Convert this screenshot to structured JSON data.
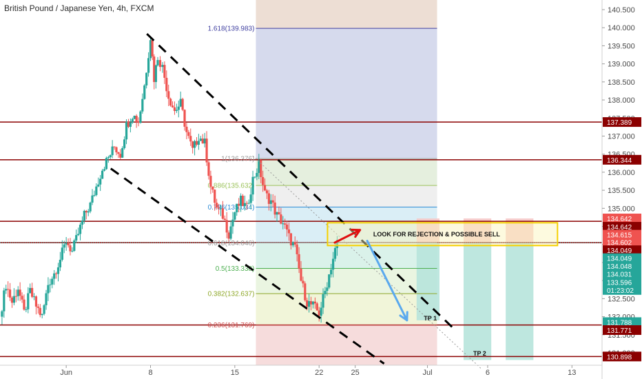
{
  "chart_data": {
    "type": "candlestick",
    "title": "British Pound / Japanese Yen, 4h, FXCM",
    "colors": {
      "up": "#26a69a",
      "down": "#ef5350",
      "level_line": "#8b0000",
      "top_fib": "#3f3fa0",
      "channel": "#000000",
      "arrow_red": "#e01010",
      "arrow_blue": "#5aa9ee",
      "zone_border": "#f5d000",
      "current_line": "#26a69a"
    },
    "y_axis": {
      "min": 130.5,
      "max": 140.85,
      "ticks": [
        "140.500",
        "140.000",
        "139.500",
        "139.000",
        "138.500",
        "138.000",
        "137.500",
        "137.000",
        "136.500",
        "136.000",
        "135.500",
        "135.000",
        "134.500",
        "134.000",
        "133.500",
        "133.000",
        "132.500",
        "132.000",
        "131.500",
        "131.000"
      ]
    },
    "x_axis": {
      "labels": [
        "Jun",
        "8",
        "15",
        "22",
        "25",
        "Jul",
        "6",
        "13"
      ],
      "label_days": [
        1,
        8,
        15,
        22,
        25,
        31,
        36,
        43
      ],
      "start_day": -4.5,
      "end_day": 45.5
    },
    "price_tags": [
      {
        "label": "137.389",
        "value": 137.389,
        "color": "#8b0000"
      },
      {
        "label": "136.344",
        "value": 136.344,
        "color": "#8b0000"
      },
      {
        "label": "134.642",
        "value": 134.72,
        "color": "#ef5350"
      },
      {
        "label": "134.642",
        "value": 134.49,
        "color": "#8b0000"
      },
      {
        "label": "134.615",
        "value": 134.27,
        "color": "#ef5350"
      },
      {
        "label": "134.602",
        "value": 134.06,
        "color": "#ef5350"
      },
      {
        "label": "134.049",
        "value": 133.84,
        "color": "#8b0000"
      },
      {
        "label": "134.049",
        "value": 133.62,
        "color": "#26a69a"
      },
      {
        "label": "134.048",
        "value": 133.4,
        "color": "#26a69a"
      },
      {
        "label": "134.031",
        "value": 133.18,
        "color": "#26a69a"
      },
      {
        "label": "133.596",
        "value": 132.96,
        "color": "#26a69a"
      },
      {
        "label": "01:23:02",
        "value": 132.74,
        "color": "#26a69a"
      },
      {
        "label": "131.788",
        "value": 131.85,
        "color": "#26a69a"
      },
      {
        "label": "131.771",
        "value": 131.63,
        "color": "#8b0000"
      },
      {
        "label": "130.898",
        "value": 130.898,
        "color": "#8b0000"
      }
    ],
    "horizontal_levels": [
      137.389,
      136.344,
      134.642,
      134.05,
      131.771,
      130.898
    ],
    "current_price": 134.049,
    "fib_levels": [
      {
        "label": "1.618(139.983)",
        "value": 139.983,
        "color": "#3f3fa0"
      },
      {
        "label": "1(136.376)",
        "value": 136.376,
        "color": "#9a9a9a"
      },
      {
        "label": "0.886(135.632)",
        "value": 135.632,
        "color": "#9bc25a"
      },
      {
        "label": "0.786(135.034)",
        "value": 135.034,
        "color": "#2b8ad4"
      },
      {
        "label": "0.618(134.046)",
        "value": 134.046,
        "color": "#9a9a9a"
      },
      {
        "label": "0.5(133.338)",
        "value": 133.338,
        "color": "#4caf50"
      },
      {
        "label": "0.382(132.637)",
        "value": 132.637,
        "color": "#8fa82a"
      },
      {
        "label": "0.236(131.769)",
        "value": 131.769,
        "color": "#d04a4a"
      }
    ],
    "fib_bands": [
      {
        "from": 140.85,
        "to": 139.983,
        "color": "#ead8cc"
      },
      {
        "from": 139.983,
        "to": 136.376,
        "color": "#cfd4ea"
      },
      {
        "from": 136.376,
        "to": 135.632,
        "color": "#e0ecd8"
      },
      {
        "from": 135.632,
        "to": 135.034,
        "color": "#ececec"
      },
      {
        "from": 135.034,
        "to": 134.046,
        "color": "#d4ebf5"
      },
      {
        "from": 134.046,
        "to": 133.338,
        "color": "#d4f0e6"
      },
      {
        "from": 133.338,
        "to": 132.637,
        "color": "#e6f3dc"
      },
      {
        "from": 132.637,
        "to": 131.769,
        "color": "#eef3d2"
      },
      {
        "from": 131.769,
        "to": 130.5,
        "color": "#f4d6d6"
      }
    ],
    "fib_x_range": [
      16.75,
      31.8
    ],
    "trade_boxes": [
      {
        "x0": 30.1,
        "x1": 32.0,
        "tp": 131.9,
        "sl": 134.72
      },
      {
        "x0": 34.0,
        "x1": 36.3,
        "tp": 130.8,
        "sl": 134.72
      },
      {
        "x0": 37.5,
        "x1": 39.8,
        "tp": 130.8,
        "sl": 134.72
      }
    ],
    "channel_lines": [
      {
        "from": [
          7.7,
          139.83
        ],
        "to": [
          33.4,
          131.6
        ]
      },
      {
        "from": [
          4.7,
          136.1
        ],
        "to": [
          27.4,
          130.7
        ]
      }
    ],
    "trend_line": {
      "from": [
        16.5,
        136.45
      ],
      "to": [
        35.5,
        130.55
      ]
    },
    "red_arrow": {
      "from": [
        23.3,
        134.05
      ],
      "to": [
        25.4,
        134.4
      ]
    },
    "blue_arrow": {
      "from": [
        26.0,
        134.1
      ],
      "to": [
        29.3,
        131.9
      ]
    },
    "zone": {
      "x0": 22.7,
      "x1": 41.8,
      "y_top": 134.6,
      "y_bottom": 133.97
    },
    "annotations": [
      {
        "text": "LOOK FOR REJECTION & POSSIBLE SELL",
        "day": 26.5,
        "value": 134.28
      },
      {
        "text": "TP 1",
        "day": 30.7,
        "value": 131.95
      },
      {
        "text": "TP 2",
        "day": 34.8,
        "value": 130.98
      }
    ],
    "candles_path": [
      [
        -4.5,
        132.0
      ],
      [
        -4.0,
        132.9
      ],
      [
        -3.5,
        132.4
      ],
      [
        -3.0,
        132.8
      ],
      [
        -2.5,
        132.1
      ],
      [
        -2.0,
        132.7
      ],
      [
        -1.5,
        132.3
      ],
      [
        -1.0,
        132.0
      ],
      [
        -0.5,
        132.9
      ],
      [
        0.0,
        133.2
      ],
      [
        0.5,
        133.6
      ],
      [
        1.0,
        134.1
      ],
      [
        1.5,
        133.8
      ],
      [
        2.0,
        134.3
      ],
      [
        2.5,
        134.8
      ],
      [
        3.0,
        135.1
      ],
      [
        3.5,
        135.6
      ],
      [
        4.0,
        136.1
      ],
      [
        4.5,
        136.4
      ],
      [
        5.0,
        136.7
      ],
      [
        5.5,
        136.5
      ],
      [
        6.0,
        137.3
      ],
      [
        6.5,
        137.6
      ],
      [
        7.0,
        137.4
      ],
      [
        7.5,
        138.4
      ],
      [
        8.0,
        139.75
      ],
      [
        8.3,
        138.6
      ],
      [
        8.6,
        139.2
      ],
      [
        9.0,
        138.9
      ],
      [
        9.5,
        138.1
      ],
      [
        10.0,
        137.7
      ],
      [
        10.5,
        137.9
      ],
      [
        11.0,
        137.1
      ],
      [
        11.5,
        136.6
      ],
      [
        12.0,
        137.0
      ],
      [
        12.5,
        136.8
      ],
      [
        13.0,
        135.6
      ],
      [
        13.5,
        135.0
      ],
      [
        14.0,
        134.8
      ],
      [
        14.5,
        134.3
      ],
      [
        15.0,
        134.9
      ],
      [
        15.5,
        135.2
      ],
      [
        16.0,
        135.0
      ],
      [
        16.5,
        135.8
      ],
      [
        17.0,
        136.2
      ],
      [
        17.5,
        135.4
      ],
      [
        18.0,
        135.2
      ],
      [
        18.5,
        134.8
      ],
      [
        19.0,
        134.6
      ],
      [
        19.5,
        134.2
      ],
      [
        20.0,
        133.9
      ],
      [
        20.5,
        133.0
      ],
      [
        21.0,
        132.4
      ],
      [
        21.5,
        132.3
      ],
      [
        22.0,
        132.1
      ],
      [
        22.5,
        132.7
      ],
      [
        23.0,
        133.4
      ],
      [
        23.5,
        134.05
      ]
    ]
  }
}
